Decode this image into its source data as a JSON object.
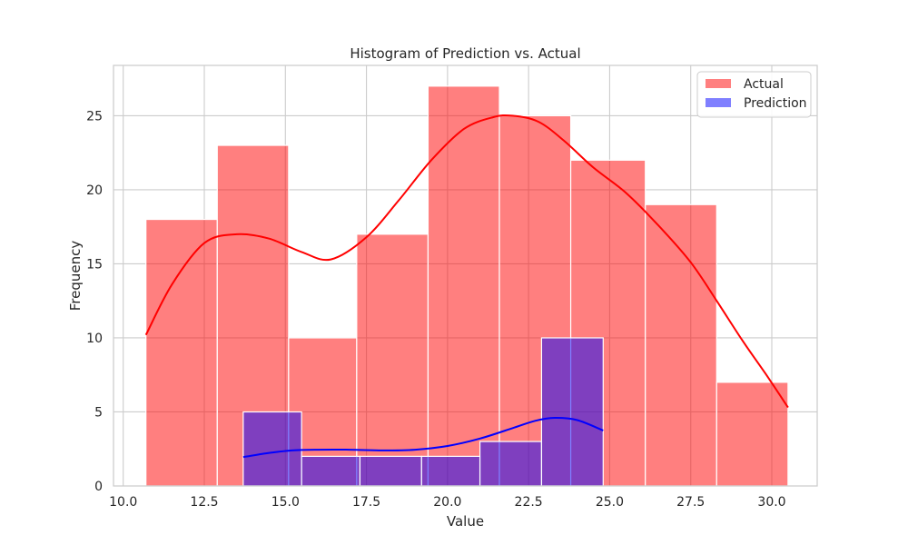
{
  "chart_data": {
    "type": "bar",
    "title": "Histogram of Prediction vs. Actual",
    "xlabel": "Value",
    "ylabel": "Frequency",
    "xlim": [
      9.7,
      31.4
    ],
    "ylim": [
      0,
      28.4
    ],
    "xticks": [
      10.0,
      12.5,
      15.0,
      17.5,
      20.0,
      22.5,
      25.0,
      27.5,
      30.0
    ],
    "xtick_labels": [
      "10.0",
      "12.5",
      "15.0",
      "17.5",
      "20.0",
      "22.5",
      "25.0",
      "27.5",
      "30.0"
    ],
    "yticks": [
      0,
      5,
      10,
      15,
      20,
      25
    ],
    "ytick_labels": [
      "0",
      "5",
      "10",
      "15",
      "20",
      "25"
    ],
    "grid": true,
    "legend_position": "top-right",
    "series": [
      {
        "name": "Actual",
        "color": "#ff0000",
        "bin_edges": [
          10.7,
          12.9,
          15.1,
          17.2,
          19.4,
          21.6,
          23.8,
          26.1,
          28.3,
          30.5
        ],
        "counts": [
          18,
          23,
          10,
          17,
          27,
          25,
          22,
          19,
          7
        ],
        "kde": {
          "x": [
            10.7,
            11.5,
            12.5,
            13.5,
            14.5,
            15.5,
            16.4,
            17.5,
            18.5,
            19.5,
            20.5,
            21.4,
            22.0,
            22.8,
            23.6,
            24.5,
            25.5,
            26.5,
            27.5,
            28.3,
            29.1,
            29.8,
            30.5
          ],
          "y": [
            10.2,
            13.6,
            16.4,
            17.0,
            16.7,
            15.8,
            15.3,
            16.8,
            19.3,
            22.0,
            24.1,
            24.9,
            25.0,
            24.6,
            23.3,
            21.5,
            19.8,
            17.6,
            15.1,
            12.5,
            9.8,
            7.6,
            5.3
          ]
        }
      },
      {
        "name": "Prediction",
        "color": "#0000ff",
        "bin_edges": [
          13.7,
          15.5,
          17.3,
          19.2,
          21.0,
          22.9,
          24.8
        ],
        "counts": [
          5,
          2,
          2,
          2,
          3,
          10
        ],
        "kde": {
          "x": [
            13.7,
            14.4,
            15.2,
            16.0,
            17.0,
            18.0,
            19.0,
            20.0,
            21.0,
            22.0,
            22.7,
            23.3,
            24.0,
            24.8
          ],
          "y": [
            1.95,
            2.2,
            2.4,
            2.45,
            2.45,
            2.4,
            2.45,
            2.7,
            3.2,
            3.9,
            4.4,
            4.6,
            4.45,
            3.75
          ]
        }
      }
    ]
  }
}
